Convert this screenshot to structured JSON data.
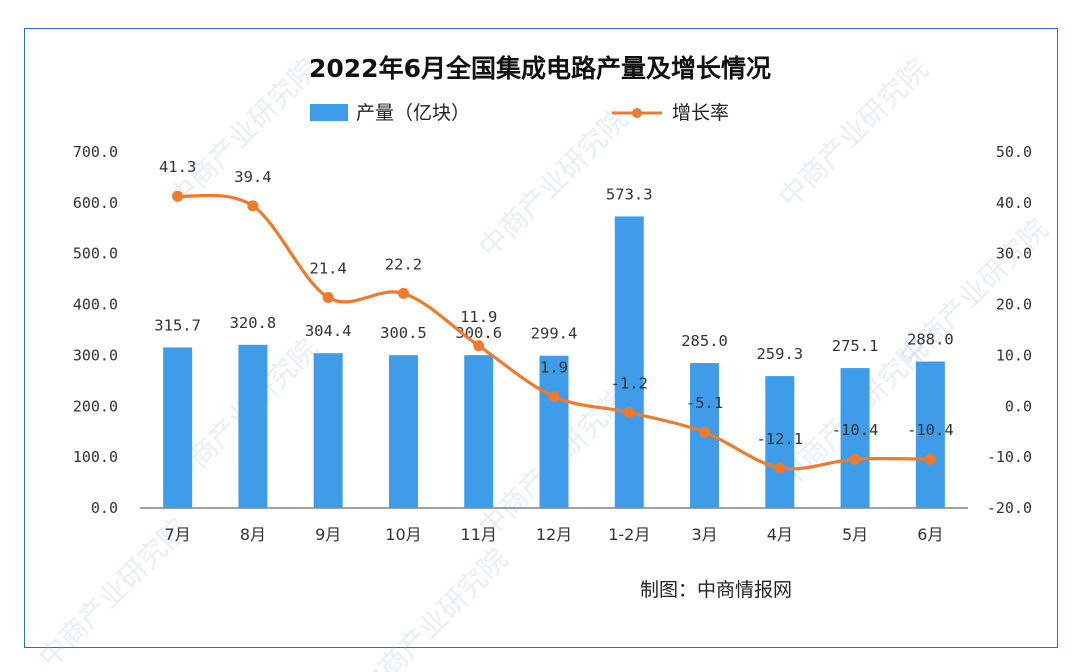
{
  "chart_data": {
    "type": "bar+line",
    "title": "2022年6月全国集成电路产量及增长情况",
    "categories": [
      "7月",
      "8月",
      "9月",
      "10月",
      "11月",
      "12月",
      "1-2月",
      "3月",
      "4月",
      "5月",
      "6月"
    ],
    "series": [
      {
        "name": "产量（亿块）",
        "type": "bar",
        "axis": "left",
        "color": "#3f9ce8",
        "values": [
          315.7,
          320.8,
          304.4,
          300.5,
          300.6,
          299.4,
          573.3,
          285.0,
          259.3,
          275.1,
          288.0
        ],
        "labels": [
          "315.7",
          "320.8",
          "304.4",
          "300.5",
          "300.6",
          "299.4",
          "573.3",
          "285.0",
          "259.3",
          "275.1",
          "288.0"
        ]
      },
      {
        "name": "增长率",
        "type": "line",
        "axis": "right",
        "color": "#f07a2c",
        "values": [
          41.3,
          39.4,
          21.4,
          22.2,
          11.9,
          1.9,
          -1.2,
          -5.1,
          -12.1,
          -10.4,
          -10.4
        ],
        "labels": [
          "41.3",
          "39.4",
          "21.4",
          "22.2",
          "11.9",
          "1.9",
          "-1.2",
          "-5.1",
          "-12.1",
          "-10.4",
          "-10.4"
        ]
      }
    ],
    "y_left": {
      "min": 0,
      "max": 700,
      "ticks": [
        "0.0",
        "100.0",
        "200.0",
        "300.0",
        "400.0",
        "500.0",
        "600.0",
        "700.0"
      ]
    },
    "y_right": {
      "min": -20,
      "max": 50,
      "ticks": [
        "-20.0",
        "-10.0",
        "0.0",
        "10.0",
        "20.0",
        "30.0",
        "40.0",
        "50.0"
      ]
    },
    "legend_position": "top-center",
    "grid": false
  },
  "credit": "制图：中商情报网",
  "watermark": "中商产业研究院"
}
